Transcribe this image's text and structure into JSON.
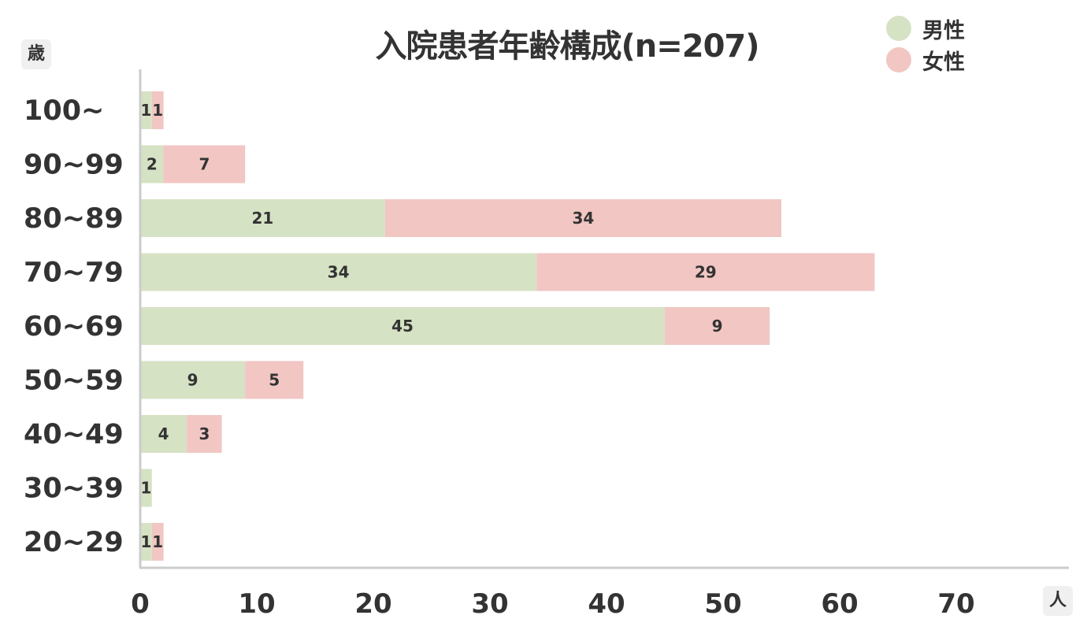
{
  "chart_data": {
    "type": "bar",
    "orientation": "horizontal",
    "stacked": true,
    "title": "入院患者年齢構成(n=207)",
    "y_unit_label": "歳",
    "x_unit_label": "人",
    "categories": [
      "100~",
      "90~99",
      "80~89",
      "70~79",
      "60~69",
      "50~59",
      "40~49",
      "30~39",
      "20~29"
    ],
    "series": [
      {
        "name": "男性",
        "color": "#d6e2c4",
        "values": [
          1,
          2,
          21,
          34,
          45,
          9,
          4,
          1,
          1
        ]
      },
      {
        "name": "女性",
        "color": "#f1c6c3",
        "values": [
          1,
          7,
          34,
          29,
          9,
          5,
          3,
          0,
          1
        ]
      }
    ],
    "xlim": [
      0,
      80
    ],
    "xticks": [
      0,
      10,
      20,
      30,
      40,
      50,
      60,
      70
    ],
    "grid": false,
    "legend_position": "top-right"
  }
}
